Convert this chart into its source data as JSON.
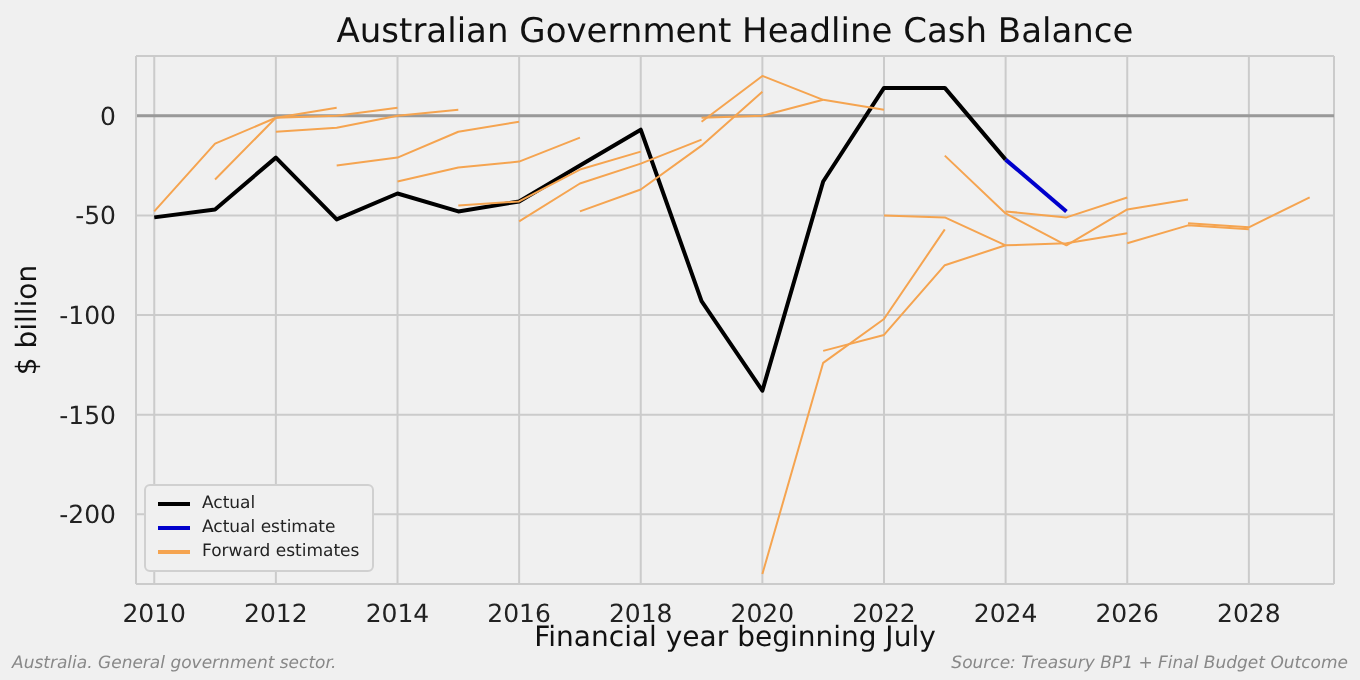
{
  "chart_data": {
    "type": "line",
    "title": "Australian Government Headline Cash Balance",
    "xlabel": "Financial year beginning July",
    "ylabel": "$ billion",
    "annotations": [
      "Australia. General government sector.",
      "Source: Treasury BP1 + Final Budget Outcome"
    ],
    "xlim": [
      2009.7,
      2029.4
    ],
    "xticks": [
      2010,
      2012,
      2014,
      2016,
      2018,
      2020,
      2022,
      2024,
      2026,
      2028
    ],
    "ylim": [
      -235,
      30
    ],
    "yticks": [
      -200,
      -150,
      -100,
      -50,
      0
    ],
    "grid": true,
    "legend": "bottom left",
    "ref_lines": [
      {
        "axis": "y",
        "value": 0,
        "color": "#999999"
      }
    ],
    "series": [
      {
        "name": "Actual",
        "color": "#000000",
        "x": [
          2010,
          2011,
          2012,
          2013,
          2014,
          2015,
          2016,
          2017,
          2018,
          2019,
          2020,
          2021,
          2022,
          2023,
          2024
        ],
        "values": [
          -51,
          -47,
          -21,
          -52,
          -39,
          -48,
          -43,
          -25,
          -7,
          -93,
          -138,
          -33,
          14,
          14,
          -22
        ]
      },
      {
        "name": "Actual estimate",
        "color": "#0000cc",
        "x": [
          2024,
          2025
        ],
        "values": [
          -22,
          -48
        ]
      },
      {
        "name": "Forward estimates",
        "color": "#f5a450",
        "x": [
          2010,
          2011,
          2012,
          2013
        ],
        "values": [
          -48,
          -14,
          -1,
          4
        ]
      },
      {
        "color": "#f5a450",
        "x": [
          2011,
          2012,
          2013,
          2014
        ],
        "values": [
          -32,
          -1,
          0,
          4
        ]
      },
      {
        "color": "#f5a450",
        "x": [
          2012,
          2013,
          2014,
          2015
        ],
        "values": [
          -8,
          -6,
          0,
          3
        ]
      },
      {
        "color": "#f5a450",
        "x": [
          2013,
          2014,
          2015,
          2016
        ],
        "values": [
          -25,
          -21,
          -8,
          -3
        ]
      },
      {
        "color": "#f5a450",
        "x": [
          2014,
          2015,
          2016,
          2017
        ],
        "values": [
          -33,
          -26,
          -23,
          -11
        ]
      },
      {
        "color": "#f5a450",
        "x": [
          2015,
          2016,
          2017,
          2018
        ],
        "values": [
          -45,
          -43,
          -27,
          -18
        ]
      },
      {
        "color": "#f5a450",
        "x": [
          2016,
          2017,
          2018,
          2019
        ],
        "values": [
          -53,
          -34,
          -24,
          -12
        ]
      },
      {
        "color": "#f5a450",
        "x": [
          2017,
          2018,
          2019,
          2020
        ],
        "values": [
          -48,
          -37,
          -15,
          12
        ]
      },
      {
        "color": "#f5a450",
        "x": [
          2019,
          2020,
          2021
        ],
        "values": [
          -1,
          0,
          8
        ]
      },
      {
        "color": "#f5a450",
        "x": [
          2019,
          2020,
          2021,
          2022
        ],
        "values": [
          -3,
          20,
          8,
          3
        ]
      },
      {
        "color": "#f5a450",
        "x": [
          2020,
          2021,
          2022,
          2023
        ],
        "values": [
          -230,
          -124,
          -102,
          -57
        ]
      },
      {
        "color": "#f5a450",
        "x": [
          2021,
          2022,
          2023,
          2024
        ],
        "values": [
          -118,
          -110,
          -75,
          -65
        ]
      },
      {
        "color": "#f5a450",
        "x": [
          2022,
          2023,
          2024,
          2025,
          2026
        ],
        "values": [
          -50,
          -51,
          -65,
          -64,
          -59
        ]
      },
      {
        "color": "#f5a450",
        "x": [
          2023,
          2024,
          2025,
          2026,
          2027
        ],
        "values": [
          -20,
          -49,
          -65,
          -47,
          -42
        ]
      },
      {
        "color": "#f5a450",
        "x": [
          2024,
          2025,
          2026
        ],
        "values": [
          -48,
          -51,
          -41
        ]
      },
      {
        "color": "#f5a450",
        "x": [
          2027,
          2028,
          2029
        ],
        "values": [
          -54,
          -56,
          -41
        ]
      },
      {
        "color": "#f5a450",
        "x": [
          2026,
          2027,
          2028
        ],
        "values": [
          -64,
          -55,
          -57
        ]
      }
    ]
  }
}
